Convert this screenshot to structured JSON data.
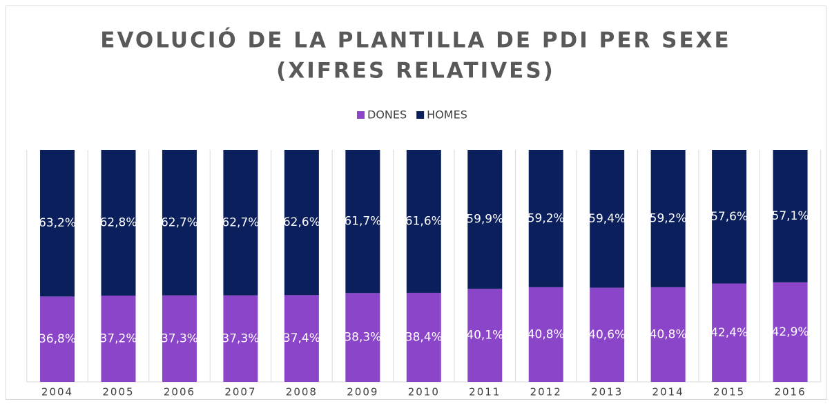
{
  "chart_data": {
    "type": "stacked_bar",
    "title": [
      "EVOLUCIÓ DE LA PLANTILLA DE PDI PER SEXE",
      "(XIFRES RELATIVES)"
    ],
    "categories": [
      "2004",
      "2005",
      "2006",
      "2007",
      "2008",
      "2009",
      "2010",
      "2011",
      "2012",
      "2013",
      "2014",
      "2015",
      "2016"
    ],
    "ylim": [
      0,
      100
    ],
    "series": [
      {
        "name": "DONES",
        "color": "#8b45c9",
        "values": [
          36.8,
          37.2,
          37.3,
          37.3,
          37.4,
          38.3,
          38.4,
          40.1,
          40.8,
          40.6,
          40.8,
          42.4,
          42.9
        ],
        "value_labels": [
          "36,8%",
          "37,2%",
          "37,3%",
          "37,3%",
          "37,4%",
          "38,3%",
          "38,4%",
          "40,1%",
          "40,8%",
          "40,6%",
          "40,8%",
          "42,4%",
          "42,9%"
        ]
      },
      {
        "name": "HOMES",
        "color": "#0b1f5c",
        "values": [
          63.2,
          62.8,
          62.7,
          62.7,
          62.6,
          61.7,
          61.6,
          59.9,
          59.2,
          59.4,
          59.2,
          57.6,
          57.1
        ],
        "value_labels": [
          "63,2%",
          "62,8%",
          "62,7%",
          "62,7%",
          "62,6%",
          "61,7%",
          "61,6%",
          "59,9%",
          "59,2%",
          "59,4%",
          "59,2%",
          "57,6%",
          "57,1%"
        ]
      }
    ]
  }
}
